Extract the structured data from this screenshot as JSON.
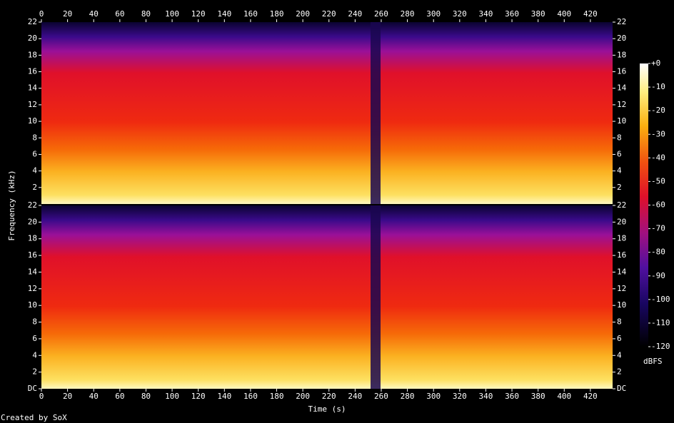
{
  "chart_data": {
    "type": "spectrogram",
    "xlabel": "Time (s)",
    "ylabel": "Frequency (kHz)",
    "footer": "Created by SoX",
    "xlim": [
      0,
      437
    ],
    "xticks": [
      0,
      20,
      40,
      60,
      80,
      100,
      120,
      140,
      160,
      180,
      200,
      220,
      240,
      260,
      280,
      300,
      320,
      340,
      360,
      380,
      400,
      420
    ],
    "panels": [
      {
        "ylim": [
          0,
          22
        ],
        "yticks": [
          2,
          4,
          6,
          8,
          10,
          12,
          14,
          16,
          18,
          20,
          22
        ]
      },
      {
        "ylim": [
          0,
          22
        ],
        "yticks": [
          {
            "value": 0,
            "label": "DC"
          },
          2,
          4,
          6,
          8,
          10,
          12,
          14,
          16,
          18,
          20,
          22
        ]
      }
    ],
    "colorbar": {
      "label": "dBFS",
      "ylim": [
        -120,
        0
      ],
      "yticks": [
        {
          "value": 0,
          "label": "+0"
        },
        -10,
        -20,
        -30,
        -40,
        -50,
        -60,
        -70,
        -80,
        -90,
        -100,
        -110,
        -120
      ]
    }
  }
}
